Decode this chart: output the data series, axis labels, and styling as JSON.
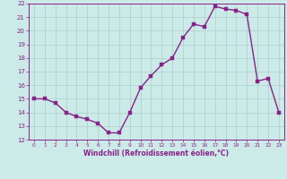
{
  "x": [
    0,
    1,
    2,
    3,
    4,
    5,
    6,
    7,
    8,
    9,
    10,
    11,
    12,
    13,
    14,
    15,
    16,
    17,
    18,
    19,
    20,
    21,
    22,
    23
  ],
  "y": [
    15,
    15,
    14.7,
    14,
    13.7,
    13.5,
    13.2,
    12.5,
    12.5,
    14,
    15.8,
    16.7,
    17.5,
    18.0,
    19.5,
    20.5,
    20.3,
    21.8,
    21.6,
    21.5,
    21.2,
    16.3,
    16.5,
    14
  ],
  "line_color": "#882288",
  "marker_color": "#882288",
  "bg_color": "#cceae8",
  "grid_color": "#aacfcc",
  "axis_color": "#882288",
  "tick_label_color": "#882288",
  "xlabel": "Windchill (Refroidissement éolien,°C)",
  "xlabel_color": "#882288",
  "ylim": [
    12,
    22
  ],
  "xlim_min": -0.5,
  "xlim_max": 23.5,
  "yticks": [
    12,
    13,
    14,
    15,
    16,
    17,
    18,
    19,
    20,
    21,
    22
  ],
  "xticks": [
    0,
    1,
    2,
    3,
    4,
    5,
    6,
    7,
    8,
    9,
    10,
    11,
    12,
    13,
    14,
    15,
    16,
    17,
    18,
    19,
    20,
    21,
    22,
    23
  ],
  "line_width": 1.0,
  "marker_size": 2.5
}
